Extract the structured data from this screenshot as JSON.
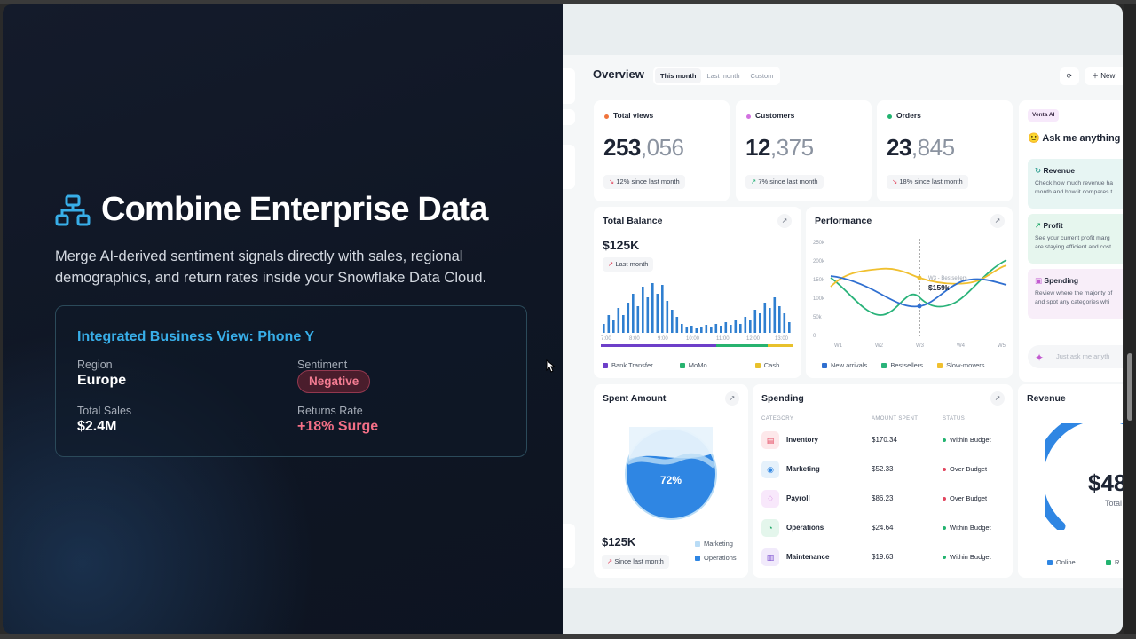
{
  "colors": {
    "accent": "#38aee8",
    "negative": "#f36f86",
    "bg_dark": "#0f1624"
  },
  "slide": {
    "icon": "sitemap-icon",
    "title": "Combine Enterprise Data",
    "subtitle": "Merge AI-derived sentiment signals directly with sales, regional demographics, and return rates inside your Snowflake Data Cloud.",
    "card": {
      "title": "Integrated Business View: Phone Y",
      "region_label": "Region",
      "region_value": "Europe",
      "sentiment_label": "Sentiment",
      "sentiment_value": "Negative",
      "sales_label": "Total Sales",
      "sales_value": "$2.4M",
      "returns_label": "Returns Rate",
      "returns_value": "+18% Surge"
    }
  },
  "dashboard": {
    "title": "Overview",
    "tabs": [
      "This month",
      "Last month",
      "Custom"
    ],
    "new_button": "New",
    "kpis": [
      {
        "label": "Total views",
        "value_strong": "253",
        "value_muted": ",056",
        "trend": "12% since last month",
        "trend_dir": "down",
        "dot": "#f0743c"
      },
      {
        "label": "Customers",
        "value_strong": "12",
        "value_muted": ",375",
        "trend": "7% since last month",
        "trend_dir": "up",
        "dot": "#d271e0"
      },
      {
        "label": "Orders",
        "value_strong": "23",
        "value_muted": ",845",
        "trend": "18% since last month",
        "trend_dir": "down",
        "dot": "#22b36f"
      }
    ],
    "ai": {
      "badge": "Venta AI",
      "ask": "Ask me anything",
      "cards": [
        {
          "title": "Revenue",
          "line1": "Check how much revenue ha",
          "line2": "month and how it compares t"
        },
        {
          "title": "Profit",
          "line1": "See your current profit marg",
          "line2": "are staying efficient and cost"
        },
        {
          "title": "Spending",
          "line1": "Review where the majority of",
          "line2": "and spot any categories whi"
        }
      ],
      "input_placeholder": "Just ask me anyth"
    },
    "total_balance": {
      "title": "Total Balance",
      "value": "$125K",
      "period": "Last month",
      "legend": [
        "Bank Transfer",
        "MoMo",
        "Cash"
      ]
    },
    "performance": {
      "title": "Performance",
      "tooltip_label": "W3 - Bestsellers",
      "tooltip_value": "$159k",
      "legend": [
        "New arrivals",
        "Bestsellers",
        "Slow-movers"
      ]
    },
    "spent": {
      "title": "Spent Amount",
      "percent": "72%",
      "value": "$125K",
      "period": "Since last month",
      "legend": [
        "Marketing",
        "Operations"
      ]
    },
    "spending": {
      "title": "Spending",
      "headers": [
        "CATEGORY",
        "AMOUNT SPENT",
        "STATUS"
      ],
      "rows": [
        {
          "name": "Inventory",
          "amount": "$170.34",
          "status": "Within Budget",
          "ok": true
        },
        {
          "name": "Marketing",
          "amount": "$52.33",
          "status": "Over Budget",
          "ok": false
        },
        {
          "name": "Payroll",
          "amount": "$86.23",
          "status": "Over Budget",
          "ok": false
        },
        {
          "name": "Operations",
          "amount": "$24.64",
          "status": "Within Budget",
          "ok": true
        },
        {
          "name": "Maintenance",
          "amount": "$19.63",
          "status": "Within Budget",
          "ok": true
        }
      ]
    },
    "revenue": {
      "title": "Revenue",
      "value": "$48",
      "sub": "Total R",
      "legend": [
        "Online",
        "R"
      ]
    }
  }
}
